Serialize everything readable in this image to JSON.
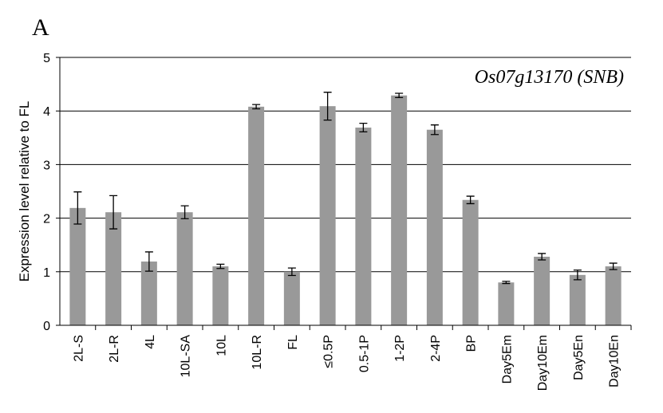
{
  "chart_data": {
    "type": "bar",
    "panel_label": "A",
    "annotation": "Os07g13170 (SNB)",
    "y_label": "Expression level relative to FL",
    "categories": [
      "2L-S",
      "2L-R",
      "4L",
      "10L-SA",
      "10L",
      "10L-R",
      "FL",
      "≤0.5P",
      "0.5-1P",
      "1-2P",
      "2-4P",
      "BP",
      "Day5Em",
      "Day10Em",
      "Day5En",
      "Day10En"
    ],
    "values": [
      2.19,
      2.11,
      1.19,
      2.11,
      1.1,
      4.08,
      1.0,
      4.09,
      3.69,
      4.29,
      3.65,
      2.34,
      0.8,
      1.28,
      0.94,
      1.1
    ],
    "errors": [
      0.3,
      0.31,
      0.18,
      0.12,
      0.04,
      0.04,
      0.07,
      0.26,
      0.08,
      0.04,
      0.09,
      0.07,
      0.02,
      0.06,
      0.09,
      0.06
    ],
    "color": "#999999",
    "ylim": [
      0,
      5
    ],
    "yticks": [
      0,
      1,
      2,
      3,
      4,
      5
    ],
    "grid": true
  }
}
